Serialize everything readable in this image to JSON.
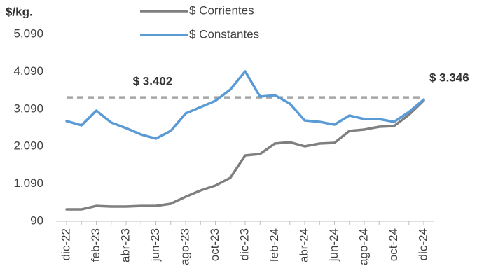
{
  "chart_data": {
    "type": "line",
    "y_axis_label": "$/kg.",
    "categories": [
      "dic-22",
      null,
      "feb-23",
      null,
      "abr-23",
      null,
      "jun-23",
      null,
      "ago-23",
      null,
      "oct-23",
      null,
      "dic-23",
      null,
      "feb-24",
      null,
      "abr-24",
      null,
      "jun-24",
      null,
      "ago-24",
      null,
      "oct-24",
      null,
      "dic-24"
    ],
    "series": [
      {
        "name": "$ Corrientes",
        "color": "#7f7f7f",
        "values": [
          408,
          408,
          500,
          483,
          483,
          500,
          500,
          558,
          745,
          914,
          1045,
          1251,
          1850,
          1888,
          2169,
          2206,
          2094,
          2169,
          2187,
          2506,
          2543,
          2618,
          2637,
          2936,
          3320
        ]
      },
      {
        "name": "$ Constantes",
        "color": "#5b9bd5",
        "values": [
          2768,
          2656,
          3049,
          2731,
          2581,
          2412,
          2300,
          2506,
          2974,
          3142,
          3311,
          3611,
          4097,
          3423,
          3461,
          3236,
          2787,
          2749,
          2674,
          2918,
          2824,
          2824,
          2749,
          3011,
          3346
        ],
        "value_labels": [
          null,
          null,
          null,
          null,
          null,
          null,
          null,
          null,
          null,
          null,
          null,
          null,
          null,
          null,
          null,
          null,
          null,
          null,
          null,
          null,
          null,
          null,
          null,
          null,
          "$ 3.346"
        ]
      }
    ],
    "reference_line": {
      "value": 3402,
      "label": "$ 3.402",
      "color": "#a6a6a6"
    },
    "ylim": [
      90,
      5090
    ],
    "yticks": [
      90,
      {
        "value": 1090,
        "label": "1.090"
      },
      {
        "value": 2090,
        "label": "2.090"
      },
      {
        "value": 3090,
        "label": "3.090"
      },
      {
        "value": 4090,
        "label": "4.090"
      },
      {
        "value": 5090,
        "label": "5.090"
      }
    ],
    "grid": false
  }
}
